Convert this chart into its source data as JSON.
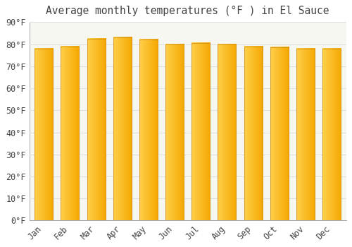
{
  "title": "Average monthly temperatures (°F ) in El Sauce",
  "months": [
    "Jan",
    "Feb",
    "Mar",
    "Apr",
    "May",
    "Jun",
    "Jul",
    "Aug",
    "Sep",
    "Oct",
    "Nov",
    "Dec"
  ],
  "values": [
    78.0,
    79.0,
    82.5,
    83.0,
    82.0,
    80.0,
    80.5,
    80.0,
    79.0,
    78.5,
    78.0,
    78.0
  ],
  "bar_color_left": "#FFD04A",
  "bar_color_right": "#F5A800",
  "bar_border_color": "#C8891A",
  "background_color": "#FFFFFF",
  "plot_bg_color": "#F7F7F2",
  "grid_color": "#E0E0E0",
  "text_color": "#444444",
  "ylim": [
    0,
    90
  ],
  "yticks": [
    0,
    10,
    20,
    30,
    40,
    50,
    60,
    70,
    80,
    90
  ],
  "title_fontsize": 10.5,
  "tick_fontsize": 8.5,
  "bar_width": 0.7
}
